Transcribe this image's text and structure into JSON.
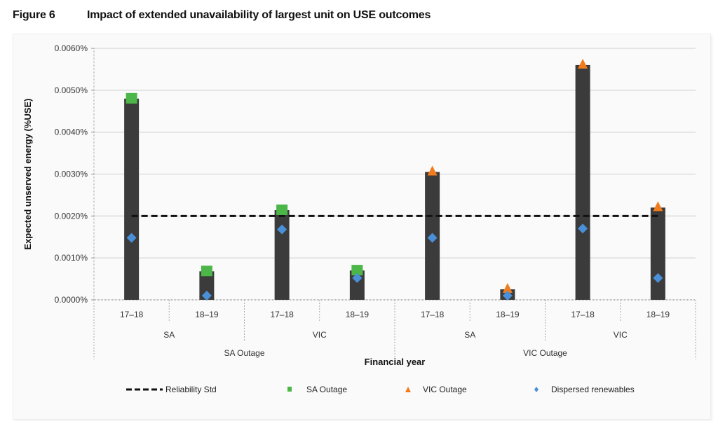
{
  "figure": {
    "number": "Figure 6",
    "title": "Impact of extended unavailability of largest unit on USE outcomes"
  },
  "chart_data": {
    "type": "bar",
    "title": "Impact of extended unavailability of largest unit on USE outcomes",
    "xlabel": "Financial year",
    "ylabel": "Expected unserved energy (%USE)",
    "ylim": [
      0,
      0.006
    ],
    "y_ticks": [
      0,
      0.001,
      0.002,
      0.003,
      0.004,
      0.005,
      0.006
    ],
    "y_tick_labels": [
      "0.0000%",
      "0.0010%",
      "0.0020%",
      "0.0030%",
      "0.0040%",
      "0.0050%",
      "0.0060%"
    ],
    "grid": true,
    "categories": [
      {
        "year": "17–18",
        "region": "SA",
        "scenario": "SA Outage"
      },
      {
        "year": "18–19",
        "region": "SA",
        "scenario": "SA Outage"
      },
      {
        "year": "17–18",
        "region": "VIC",
        "scenario": "SA Outage"
      },
      {
        "year": "18–19",
        "region": "VIC",
        "scenario": "SA Outage"
      },
      {
        "year": "17–18",
        "region": "SA",
        "scenario": "VIC Outage"
      },
      {
        "year": "18–19",
        "region": "SA",
        "scenario": "VIC Outage"
      },
      {
        "year": "17–18",
        "region": "VIC",
        "scenario": "VIC Outage"
      },
      {
        "year": "18–19",
        "region": "VIC",
        "scenario": "VIC Outage"
      }
    ],
    "region_groups": [
      "SA",
      "VIC",
      "SA",
      "VIC"
    ],
    "scenario_groups": [
      "SA Outage",
      "VIC Outage"
    ],
    "bar_values": [
      0.0048,
      0.00068,
      0.00214,
      0.0007,
      0.00305,
      0.00025,
      0.0056,
      0.0022
    ],
    "series": [
      {
        "name": "Reliability Std",
        "kind": "dashed-line",
        "color": "#111111",
        "value": 0.002
      },
      {
        "name": "SA Outage",
        "kind": "square-marker",
        "color": "#4cb648",
        "values": [
          0.0048,
          0.00068,
          0.00214,
          0.0007,
          null,
          null,
          null,
          null
        ]
      },
      {
        "name": "VIC Outage",
        "kind": "triangle-marker",
        "color": "#f07c1e",
        "values": [
          null,
          null,
          null,
          null,
          0.00305,
          0.00025,
          0.0056,
          0.0022
        ]
      },
      {
        "name": "Dispersed renewables",
        "kind": "diamond-marker",
        "color": "#4a90d9",
        "values": [
          0.00148,
          0.0001,
          0.00168,
          0.00052,
          0.00148,
          0.0001,
          0.0017,
          0.00052
        ]
      }
    ],
    "bar_color": "#3b3b3b",
    "legend_position": "bottom"
  }
}
